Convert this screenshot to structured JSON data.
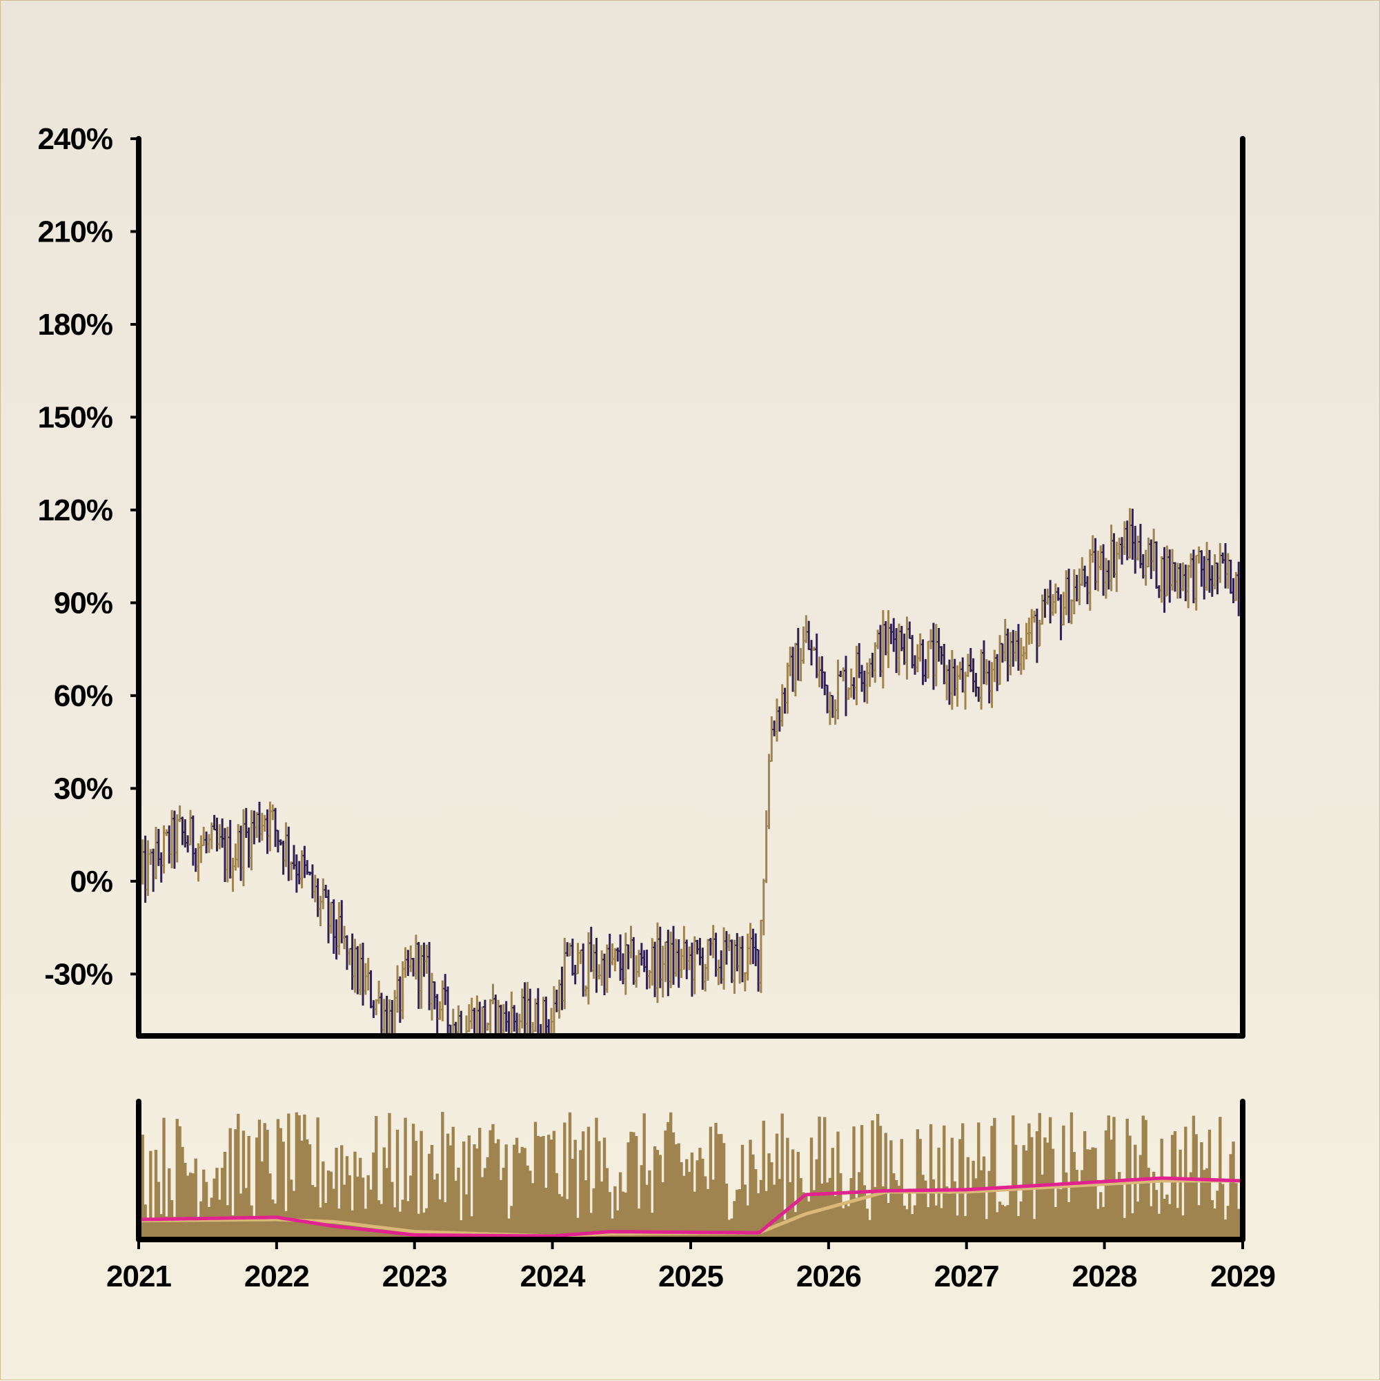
{
  "chart_data": [
    {
      "type": "ohlc",
      "panel": "price",
      "title": "",
      "xlabel": "",
      "ylabel": "",
      "y_unit": "%",
      "ylim": [
        -50,
        240
      ],
      "y_ticks": [
        -30,
        0,
        30,
        60,
        90,
        120,
        150,
        180,
        210,
        240
      ],
      "y_tick_labels": [
        "-30%",
        "0%",
        "30%",
        "60%",
        "90%",
        "120%",
        "150%",
        "180%",
        "210%",
        "240%"
      ],
      "x_range": [
        "2021-01-01",
        "2029-01-01"
      ],
      "bars_per_year": 52,
      "colors": {
        "up": "#a0844f",
        "down": "#2f2152"
      },
      "key_levels": [
        {
          "date": "2021-01-01",
          "close": 0
        },
        {
          "date": "2021-04-15",
          "close": 15
        },
        {
          "date": "2021-09-01",
          "close": 8
        },
        {
          "date": "2021-12-01",
          "close": 22
        },
        {
          "date": "2022-03-01",
          "close": 5
        },
        {
          "date": "2022-08-01",
          "close": -30
        },
        {
          "date": "2022-11-01",
          "close": -45
        },
        {
          "date": "2023-01-01",
          "close": -25
        },
        {
          "date": "2023-04-01",
          "close": -45
        },
        {
          "date": "2024-01-01",
          "close": -45
        },
        {
          "date": "2024-02-01",
          "close": -28
        },
        {
          "date": "2025-07-01",
          "close": -25
        },
        {
          "date": "2025-08-01",
          "close": 50
        },
        {
          "date": "2025-11-01",
          "close": 78
        },
        {
          "date": "2026-01-01",
          "close": 60
        },
        {
          "date": "2026-07-01",
          "close": 80
        },
        {
          "date": "2027-01-01",
          "close": 62
        },
        {
          "date": "2027-08-01",
          "close": 85
        },
        {
          "date": "2028-03-01",
          "close": 110
        },
        {
          "date": "2028-06-01",
          "close": 100
        },
        {
          "date": "2029-01-01",
          "close": 98
        }
      ]
    },
    {
      "type": "bar",
      "panel": "volume",
      "title": "",
      "x_range": [
        "2021-01-01",
        "2029-01-01"
      ],
      "x_ticks": [
        "2021",
        "2022",
        "2023",
        "2024",
        "2025",
        "2026",
        "2027",
        "2028",
        "2029"
      ],
      "colors": {
        "bars": "#a0844f",
        "ma_fast": "#e0238f",
        "ma_slow": "#d9b878"
      },
      "ma_levels": [
        {
          "date": "2021-01-01",
          "fast": 0.3,
          "slow": 0.28
        },
        {
          "date": "2022-01-01",
          "fast": 0.34,
          "slow": 0.3
        },
        {
          "date": "2022-06-01",
          "fast": 0.18,
          "slow": 0.26
        },
        {
          "date": "2023-01-01",
          "fast": 0.02,
          "slow": 0.08
        },
        {
          "date": "2024-01-01",
          "fast": 0.0,
          "slow": 0.0
        },
        {
          "date": "2024-06-01",
          "fast": 0.08,
          "slow": 0.04
        },
        {
          "date": "2025-07-01",
          "fast": 0.06,
          "slow": 0.06
        },
        {
          "date": "2025-11-01",
          "fast": 0.75,
          "slow": 0.4
        },
        {
          "date": "2026-06-01",
          "fast": 0.82,
          "slow": 0.8
        },
        {
          "date": "2027-01-01",
          "fast": 0.84,
          "slow": 0.8
        },
        {
          "date": "2028-06-01",
          "fast": 1.05,
          "slow": 1.0
        },
        {
          "date": "2029-01-01",
          "fast": 1.0,
          "slow": 1.0
        }
      ]
    }
  ]
}
